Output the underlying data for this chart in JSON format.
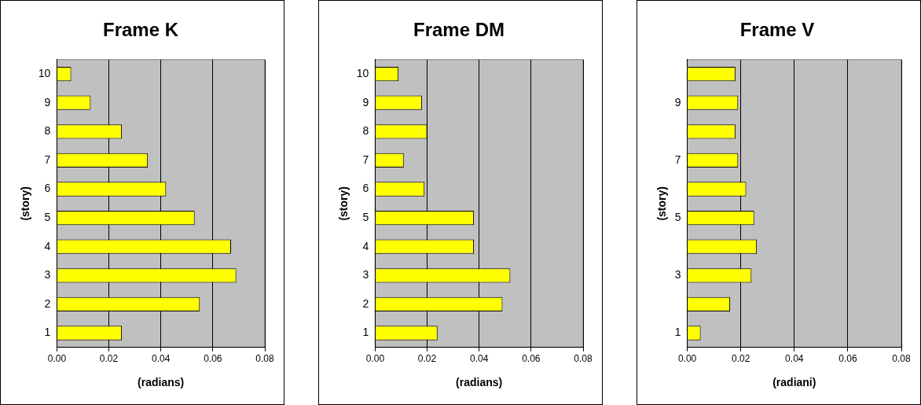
{
  "chart_data": [
    {
      "type": "bar",
      "orientation": "horizontal",
      "title": "Frame K",
      "xlabel": "(radians)",
      "ylabel": "(story)",
      "categories": [
        "10",
        "9",
        "8",
        "7",
        "6",
        "5",
        "4",
        "3",
        "2",
        "1"
      ],
      "values": [
        0.0055,
        0.013,
        0.025,
        0.035,
        0.042,
        0.053,
        0.067,
        0.069,
        0.055,
        0.025
      ],
      "color": "#ffff00",
      "xlim": [
        0,
        0.08
      ],
      "xticks": [
        {
          "value": 0,
          "label": "0.00"
        },
        {
          "value": 0.02,
          "label": "0.02"
        },
        {
          "value": 0.04,
          "label": "0.04"
        },
        {
          "value": 0.06,
          "label": "0.06"
        },
        {
          "value": 0.08,
          "label": "0.08"
        }
      ],
      "grid": "x",
      "legend": false
    },
    {
      "type": "bar",
      "orientation": "horizontal",
      "title": "Frame DM",
      "xlabel": "(radians)",
      "ylabel": "(story)",
      "categories": [
        "10",
        "9",
        "8",
        "7",
        "6",
        "5",
        "4",
        "3",
        "2",
        "1"
      ],
      "values": [
        0.009,
        0.018,
        0.02,
        0.011,
        0.019,
        0.038,
        0.038,
        0.052,
        0.049,
        0.024
      ],
      "color": "#ffff00",
      "xlim": [
        0,
        0.08
      ],
      "xticks": [
        {
          "value": 0,
          "label": "0.00"
        },
        {
          "value": 0.02,
          "label": "0.02"
        },
        {
          "value": 0.04,
          "label": "0.04"
        },
        {
          "value": 0.06,
          "label": "0.06"
        },
        {
          "value": 0.08,
          "label": "0.08"
        }
      ],
      "grid": "x",
      "legend": false
    },
    {
      "type": "bar",
      "orientation": "horizontal",
      "title": "Frame V",
      "xlabel": "(radiani)",
      "ylabel": "(story)",
      "categories": [
        null,
        "9",
        null,
        "7",
        null,
        "5",
        null,
        "3",
        null,
        "1"
      ],
      "values": [
        0.018,
        0.019,
        0.018,
        0.019,
        0.022,
        0.025,
        0.026,
        0.024,
        0.016,
        0.005
      ],
      "color": "#ffff00",
      "xlim": [
        0,
        0.08
      ],
      "xticks": [
        {
          "value": 0,
          "label": "0.00"
        },
        {
          "value": 0.02,
          "label": "0.02"
        },
        {
          "value": 0.04,
          "label": "0.04"
        },
        {
          "value": 0.06,
          "label": "0.06"
        },
        {
          "value": 0.08,
          "label": "0.08"
        }
      ],
      "grid": "x",
      "legend": false
    }
  ]
}
